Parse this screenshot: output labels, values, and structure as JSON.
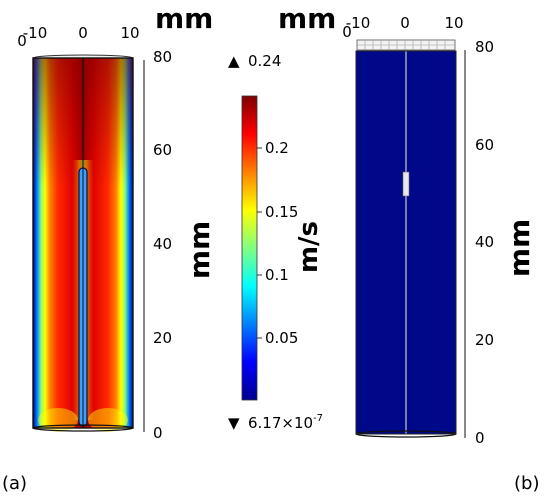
{
  "panel_a": {
    "axis_unit": "mm",
    "x_ticks": [
      "-10",
      "0",
      "10"
    ],
    "x_extra_tick": "0",
    "y_ticks": [
      "80",
      "60",
      "40",
      "20",
      "0"
    ],
    "y_label": "mm",
    "caption": "(a)"
  },
  "panel_b": {
    "axis_unit": "mm",
    "x_ticks": [
      "-10",
      "0",
      "10"
    ],
    "x_extra_tick": "0",
    "y_ticks": [
      "80",
      "60",
      "40",
      "20",
      "0"
    ],
    "y_label": "mm",
    "caption": "(b)"
  },
  "colorbar": {
    "max_label": "0.24",
    "min_mantissa": "6.17×10",
    "min_exponent": "-7",
    "ticks": [
      "0.2",
      "0.15",
      "0.1",
      "0.05"
    ],
    "unit": "m/s",
    "max_marker": "▲",
    "min_marker": "▼"
  },
  "colors": {
    "jet": [
      "#00008f",
      "#0000ff",
      "#0080ff",
      "#00ffff",
      "#80ff80",
      "#ffff00",
      "#ff8000",
      "#ff0000",
      "#800000"
    ],
    "panel_b_fill": "#00088a"
  }
}
